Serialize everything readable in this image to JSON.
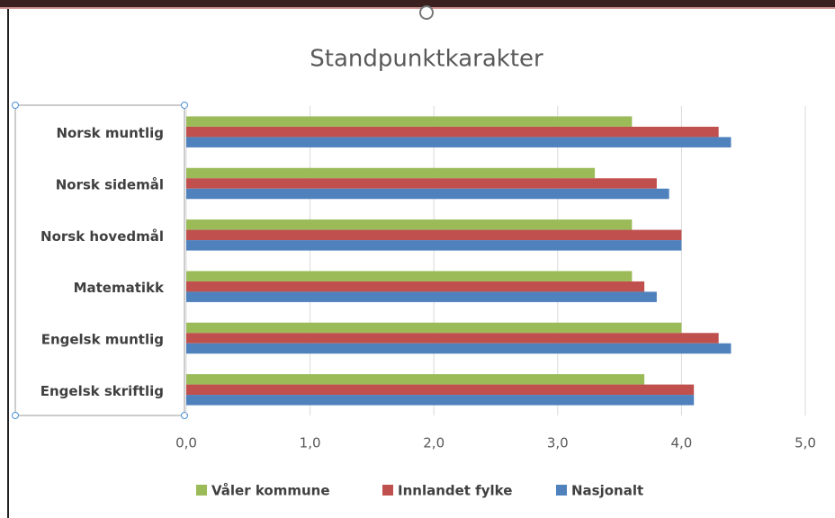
{
  "chart_data": {
    "type": "barh",
    "title": "Standpunktkarakter",
    "categories": [
      "Norsk muntlig",
      "Norsk sidemål",
      "Norsk hovedmål",
      "Matematikk",
      "Engelsk muntlig",
      "Engelsk skriftlig"
    ],
    "series": [
      {
        "name": "Våler kommune",
        "color": "#9bbb59",
        "values": [
          3.6,
          3.3,
          3.6,
          3.6,
          4.0,
          3.7
        ]
      },
      {
        "name": "Innlandet fylke",
        "color": "#c0504d",
        "values": [
          4.3,
          3.8,
          4.0,
          3.7,
          4.3,
          4.1
        ]
      },
      {
        "name": "Nasjonalt",
        "color": "#4f81bd",
        "values": [
          4.4,
          3.9,
          4.0,
          3.8,
          4.4,
          4.1
        ]
      }
    ],
    "xlim": [
      0,
      5
    ],
    "xticks": [
      {
        "value": 0,
        "label": "0,0"
      },
      {
        "value": 1,
        "label": "1,0"
      },
      {
        "value": 2,
        "label": "2,0"
      },
      {
        "value": 3,
        "label": "3,0"
      },
      {
        "value": 4,
        "label": "4,0"
      },
      {
        "value": 5,
        "label": "5,0"
      }
    ],
    "grid": true,
    "legend": "bottom"
  }
}
